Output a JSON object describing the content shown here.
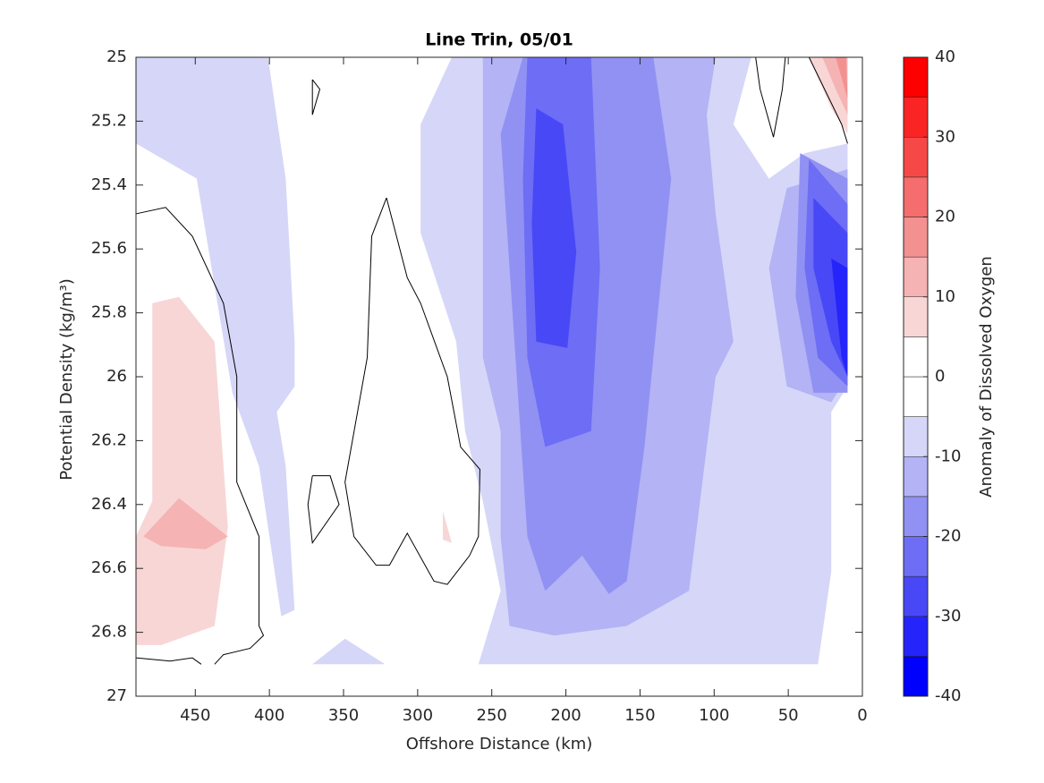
{
  "chart_data": {
    "type": "contour",
    "title": "Line Trin, 05/01",
    "xlabel": "Offshore Distance (km)",
    "ylabel": "Potential Density (kg/m³)",
    "colorbar_label": "Anomaly of Dissolved Oxygen",
    "xlim": [
      490,
      0
    ],
    "xticks": [
      450,
      400,
      350,
      300,
      250,
      200,
      150,
      100,
      50,
      0
    ],
    "ylim": [
      25,
      27
    ],
    "yticks": [
      25,
      25.2,
      25.4,
      25.6,
      25.8,
      26,
      26.2,
      26.4,
      26.6,
      26.8,
      27
    ],
    "clim": [
      -40,
      40
    ],
    "cticks": [
      -40,
      -30,
      -20,
      -10,
      0,
      10,
      20,
      30,
      40
    ],
    "level_step": 5,
    "colors": [
      "#0000ff",
      "#2424fb",
      "#4848f7",
      "#6d6df5",
      "#9191f3",
      "#b3b3f5",
      "#d6d6f8",
      "#ffffff",
      "#ffffff",
      "#f8d6d6",
      "#f5b3b3",
      "#f39191",
      "#f56d6d",
      "#f74848",
      "#fb2424",
      "#ff0000"
    ],
    "line_color": "#000000",
    "regions": [
      {
        "level": -5,
        "points": [
          [
            277,
            25
          ],
          [
            75,
            25
          ],
          [
            87,
            25.21
          ],
          [
            63,
            25.38
          ],
          [
            39,
            25.3
          ],
          [
            10,
            25.27
          ],
          [
            10,
            26.03
          ],
          [
            21,
            26.11
          ],
          [
            21,
            26.61
          ],
          [
            30,
            26.9
          ],
          [
            259,
            26.9
          ],
          [
            244,
            26.67
          ],
          [
            256,
            26.39
          ],
          [
            268,
            26.17
          ],
          [
            274,
            25.89
          ],
          [
            298,
            25.55
          ],
          [
            298,
            25.21
          ]
        ]
      },
      {
        "level": -5,
        "points": [
          [
            490,
            25
          ],
          [
            401,
            25
          ],
          [
            389,
            25.38
          ],
          [
            383,
            25.89
          ],
          [
            383,
            26.03
          ],
          [
            395,
            26.11
          ],
          [
            389,
            26.28
          ],
          [
            383,
            26.73
          ],
          [
            392,
            26.75
          ],
          [
            407,
            26.28
          ],
          [
            425,
            26.05
          ],
          [
            449,
            25.38
          ],
          [
            490,
            25.27
          ]
        ]
      },
      {
        "level": -5,
        "points": [
          [
            371,
            26.9
          ],
          [
            349,
            26.82
          ],
          [
            322,
            26.9
          ]
        ]
      },
      {
        "level": 5,
        "points": [
          [
            479,
            25.77
          ],
          [
            461,
            25.75
          ],
          [
            437,
            25.89
          ],
          [
            428,
            26.47
          ],
          [
            437,
            26.78
          ],
          [
            473,
            26.84
          ],
          [
            490,
            26.84
          ],
          [
            490,
            26.5
          ],
          [
            479,
            26.39
          ]
        ]
      },
      {
        "level": 5,
        "points": [
          [
            36,
            25
          ],
          [
            18,
            25
          ],
          [
            10,
            25.1
          ],
          [
            10,
            25.24
          ],
          [
            21,
            25.16
          ]
        ]
      },
      {
        "level": 5,
        "points": [
          [
            283,
            26.42
          ],
          [
            280,
            26.47
          ],
          [
            277,
            26.52
          ],
          [
            283,
            26.51
          ]
        ]
      },
      {
        "level": -10,
        "points": [
          [
            256,
            25
          ],
          [
            99,
            25
          ],
          [
            105,
            25.18
          ],
          [
            99,
            25.49
          ],
          [
            87,
            25.89
          ],
          [
            99,
            26
          ],
          [
            105,
            26.22
          ],
          [
            117,
            26.67
          ],
          [
            159,
            26.78
          ],
          [
            208,
            26.81
          ],
          [
            238,
            26.78
          ],
          [
            244,
            26.5
          ],
          [
            244,
            26.17
          ],
          [
            256,
            25.94
          ],
          [
            256,
            25.38
          ]
        ]
      },
      {
        "level": -10,
        "points": [
          [
            51,
            25.41
          ],
          [
            10,
            25.35
          ],
          [
            10,
            26
          ],
          [
            21,
            26.08
          ],
          [
            51,
            26.03
          ],
          [
            63,
            25.66
          ]
        ]
      },
      {
        "level": 10,
        "points": [
          [
            485,
            26.5
          ],
          [
            461,
            26.38
          ],
          [
            428,
            26.5
          ],
          [
            443,
            26.54
          ],
          [
            473,
            26.53
          ]
        ]
      },
      {
        "level": 10,
        "points": [
          [
            27,
            25
          ],
          [
            10,
            25
          ],
          [
            10,
            25.18
          ],
          [
            18,
            25.1
          ]
        ]
      },
      {
        "level": -15,
        "points": [
          [
            229,
            25
          ],
          [
            141,
            25
          ],
          [
            129,
            25.38
          ],
          [
            135,
            25.66
          ],
          [
            147,
            26.22
          ],
          [
            159,
            26.64
          ],
          [
            171,
            26.68
          ],
          [
            189,
            26.56
          ],
          [
            214,
            26.67
          ],
          [
            226,
            26.5
          ],
          [
            232,
            26.08
          ],
          [
            238,
            25.66
          ],
          [
            244,
            25.24
          ]
        ]
      },
      {
        "level": -15,
        "points": [
          [
            42,
            25.3
          ],
          [
            10,
            25.38
          ],
          [
            10,
            26.05
          ],
          [
            33,
            26.05
          ],
          [
            45,
            25.75
          ]
        ]
      },
      {
        "level": 15,
        "points": [
          [
            18,
            25
          ],
          [
            11,
            25
          ],
          [
            10,
            25.13
          ]
        ]
      },
      {
        "level": -20,
        "points": [
          [
            226,
            25
          ],
          [
            183,
            25
          ],
          [
            177,
            25.66
          ],
          [
            183,
            26.17
          ],
          [
            214,
            26.22
          ],
          [
            226,
            25.94
          ],
          [
            229,
            25.38
          ]
        ]
      },
      {
        "level": -20,
        "points": [
          [
            36,
            25.32
          ],
          [
            10,
            25.46
          ],
          [
            10,
            26.03
          ],
          [
            30,
            25.94
          ],
          [
            39,
            25.66
          ]
        ]
      },
      {
        "level": -25,
        "points": [
          [
            220,
            25.16
          ],
          [
            202,
            25.21
          ],
          [
            193,
            25.61
          ],
          [
            199,
            25.91
          ],
          [
            220,
            25.89
          ],
          [
            223,
            25.52
          ]
        ]
      },
      {
        "level": -25,
        "points": [
          [
            33,
            25.44
          ],
          [
            10,
            25.55
          ],
          [
            10,
            26
          ],
          [
            21,
            25.89
          ],
          [
            33,
            25.66
          ]
        ]
      },
      {
        "level": -30,
        "points": [
          [
            21,
            25.63
          ],
          [
            10,
            25.66
          ],
          [
            10,
            26
          ],
          [
            14,
            25.94
          ]
        ]
      }
    ],
    "lines": [
      {
        "level": 0,
        "points": [
          [
            490,
            25.49
          ],
          [
            470,
            25.47
          ],
          [
            452,
            25.56
          ],
          [
            431,
            25.77
          ],
          [
            422,
            26
          ],
          [
            422,
            26.33
          ],
          [
            407,
            26.5
          ],
          [
            407,
            26.78
          ],
          [
            404,
            26.81
          ],
          [
            413,
            26.85
          ],
          [
            431,
            26.87
          ],
          [
            437,
            26.9
          ]
        ]
      },
      {
        "level": 0,
        "points": [
          [
            490,
            26.88
          ],
          [
            467,
            26.89
          ],
          [
            452,
            26.88
          ],
          [
            446,
            26.9
          ]
        ]
      },
      {
        "level": 0,
        "points": [
          [
            321,
            25.44
          ],
          [
            331,
            25.56
          ],
          [
            334,
            25.94
          ],
          [
            349,
            26.33
          ],
          [
            343,
            26.5
          ],
          [
            328,
            26.59
          ],
          [
            319,
            26.59
          ],
          [
            307,
            26.49
          ],
          [
            289,
            26.64
          ],
          [
            280,
            26.65
          ],
          [
            265,
            26.56
          ],
          [
            259,
            26.5
          ],
          [
            258,
            26.29
          ],
          [
            271,
            26.22
          ],
          [
            280,
            26
          ],
          [
            298,
            25.77
          ],
          [
            307,
            25.69
          ],
          [
            321,
            25.44
          ]
        ]
      },
      {
        "level": 0,
        "points": [
          [
            72,
            25
          ],
          [
            69,
            25.1
          ],
          [
            60,
            25.25
          ],
          [
            54,
            25.1
          ],
          [
            52,
            25
          ]
        ]
      },
      {
        "level": 0,
        "points": [
          [
            36,
            25
          ],
          [
            14,
            25.21
          ],
          [
            10,
            25.27
          ]
        ]
      },
      {
        "level": 0,
        "points": [
          [
            371,
            26.31
          ],
          [
            359,
            26.31
          ],
          [
            353,
            26.4
          ],
          [
            371,
            26.52
          ],
          [
            374,
            26.4
          ],
          [
            371,
            26.31
          ]
        ]
      },
      {
        "level": 0,
        "points": [
          [
            371,
            25.07
          ],
          [
            366,
            25.1
          ],
          [
            371,
            25.18
          ],
          [
            371,
            25.07
          ]
        ]
      }
    ]
  }
}
